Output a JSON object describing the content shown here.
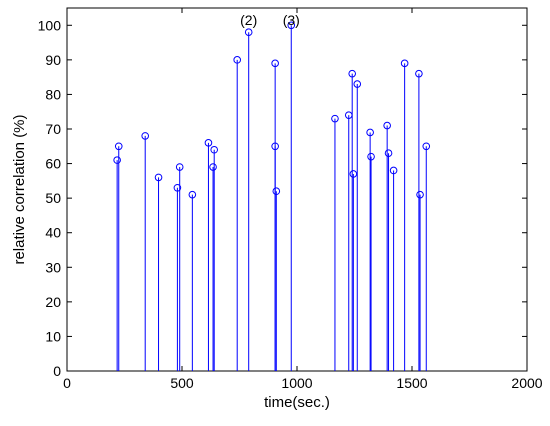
{
  "chart_data": {
    "type": "stem",
    "xlabel": "time(sec.)",
    "ylabel": "relative correlation (%)",
    "xlim": [
      0,
      2000
    ],
    "ylim": [
      0,
      105
    ],
    "x_ticks": [
      0,
      500,
      1000,
      1500,
      2000
    ],
    "y_ticks": [
      0,
      10,
      20,
      30,
      40,
      50,
      60,
      70,
      80,
      90,
      100
    ],
    "grid": false,
    "color": "#0000ff",
    "points": [
      {
        "x": 218,
        "y": 61
      },
      {
        "x": 225,
        "y": 65
      },
      {
        "x": 340,
        "y": 68
      },
      {
        "x": 398,
        "y": 56
      },
      {
        "x": 480,
        "y": 53
      },
      {
        "x": 490,
        "y": 59
      },
      {
        "x": 545,
        "y": 51
      },
      {
        "x": 615,
        "y": 66
      },
      {
        "x": 635,
        "y": 59
      },
      {
        "x": 640,
        "y": 64
      },
      {
        "x": 740,
        "y": 90
      },
      {
        "x": 790,
        "y": 98
      },
      {
        "x": 905,
        "y": 89
      },
      {
        "x": 905,
        "y": 65
      },
      {
        "x": 910,
        "y": 52
      },
      {
        "x": 975,
        "y": 100
      },
      {
        "x": 1165,
        "y": 73
      },
      {
        "x": 1225,
        "y": 74
      },
      {
        "x": 1240,
        "y": 86
      },
      {
        "x": 1245,
        "y": 57
      },
      {
        "x": 1262,
        "y": 83
      },
      {
        "x": 1318,
        "y": 69
      },
      {
        "x": 1322,
        "y": 62
      },
      {
        "x": 1392,
        "y": 71
      },
      {
        "x": 1398,
        "y": 63
      },
      {
        "x": 1420,
        "y": 58
      },
      {
        "x": 1468,
        "y": 89
      },
      {
        "x": 1530,
        "y": 86
      },
      {
        "x": 1535,
        "y": 51
      },
      {
        "x": 1562,
        "y": 65
      }
    ],
    "annotations": [
      {
        "text": "(2)",
        "x": 790
      },
      {
        "text": "(3)",
        "x": 975
      }
    ]
  }
}
